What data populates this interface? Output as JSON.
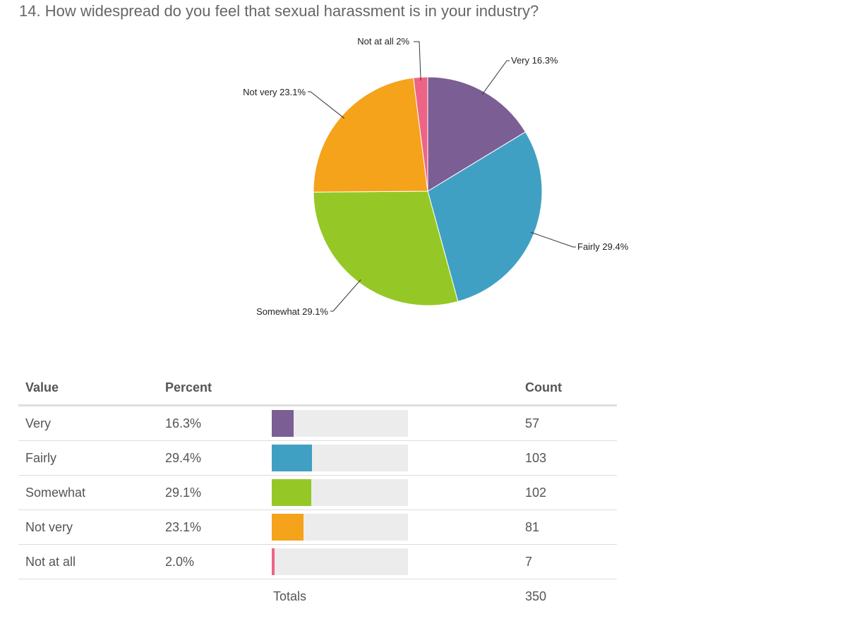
{
  "question": {
    "title": "14. How widespread do you feel that sexual harassment is in your industry?"
  },
  "chart_data": {
    "type": "pie",
    "slices": [
      {
        "label": "Very",
        "percent": 16.3,
        "percent_label": "16.3%",
        "count": 57,
        "color": "#7b5e93"
      },
      {
        "label": "Fairly",
        "percent": 29.4,
        "percent_label": "29.4%",
        "count": 103,
        "color": "#40a0c3"
      },
      {
        "label": "Somewhat",
        "percent": 29.1,
        "percent_label": "29.1%",
        "count": 102,
        "color": "#95c826"
      },
      {
        "label": "Not very",
        "percent": 23.1,
        "percent_label": "23.1%",
        "count": 81,
        "color": "#f4a31b"
      },
      {
        "label": "Not at all",
        "percent": 2.0,
        "percent_label": "2%",
        "count": 7,
        "color": "#ee6487"
      }
    ]
  },
  "table": {
    "headers": {
      "value": "Value",
      "percent": "Percent",
      "count": "Count"
    },
    "rows": [
      {
        "value": "Very",
        "percent": "16.3%",
        "fraction": 0.163,
        "count": "57"
      },
      {
        "value": "Fairly",
        "percent": "29.4%",
        "fraction": 0.294,
        "count": "103"
      },
      {
        "value": "Somewhat",
        "percent": "29.1%",
        "fraction": 0.291,
        "count": "102"
      },
      {
        "value": "Not very",
        "percent": "23.1%",
        "fraction": 0.231,
        "count": "81"
      },
      {
        "value": "Not at all",
        "percent": "2.0%",
        "fraction": 0.02,
        "count": "7"
      }
    ],
    "totals": {
      "label": "Totals",
      "count": "350"
    }
  }
}
